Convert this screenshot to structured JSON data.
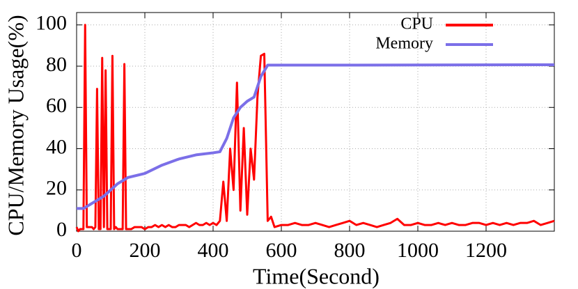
{
  "chart_data": {
    "type": "line",
    "x_label": "Time(Second)",
    "y_label": "CPU/Memory Usage(%)",
    "xlim": [
      0,
      1400
    ],
    "ylim": [
      0,
      106
    ],
    "xticks": [
      0,
      200,
      400,
      600,
      800,
      1000,
      1200
    ],
    "yticks": [
      0,
      20,
      40,
      60,
      80,
      100
    ],
    "grid": true,
    "legend_position": "top-right",
    "series": [
      {
        "name": "CPU",
        "color": "#ff0000",
        "x": [
          0,
          5,
          10,
          15,
          20,
          25,
          30,
          35,
          40,
          45,
          50,
          55,
          60,
          65,
          70,
          75,
          80,
          85,
          90,
          95,
          100,
          105,
          110,
          115,
          120,
          125,
          130,
          135,
          140,
          145,
          150,
          160,
          170,
          180,
          190,
          200,
          210,
          220,
          230,
          240,
          250,
          260,
          270,
          280,
          290,
          300,
          310,
          320,
          330,
          340,
          350,
          360,
          370,
          380,
          390,
          400,
          410,
          420,
          430,
          440,
          450,
          460,
          470,
          480,
          490,
          500,
          510,
          520,
          530,
          540,
          550,
          560,
          570,
          580,
          600,
          620,
          640,
          660,
          680,
          700,
          720,
          740,
          760,
          780,
          800,
          820,
          840,
          860,
          880,
          900,
          920,
          940,
          960,
          980,
          1000,
          1020,
          1040,
          1060,
          1080,
          1100,
          1120,
          1140,
          1160,
          1180,
          1200,
          1220,
          1240,
          1260,
          1280,
          1300,
          1320,
          1340,
          1360,
          1380,
          1400
        ],
        "values": [
          2,
          0,
          1,
          1,
          1,
          100,
          2,
          2,
          2,
          2,
          1,
          2,
          69,
          1,
          1,
          84,
          2,
          78,
          1,
          1,
          1,
          85,
          1,
          2,
          1,
          1,
          1,
          1,
          81,
          1,
          1,
          1,
          2,
          2,
          2,
          1,
          2,
          2,
          3,
          2,
          3,
          2,
          3,
          2,
          2,
          3,
          3,
          3,
          2,
          3,
          4,
          3,
          3,
          4,
          3,
          4,
          3,
          5,
          24,
          5,
          40,
          20,
          72,
          10,
          50,
          8,
          40,
          25,
          65,
          85,
          86,
          5,
          7,
          2,
          3,
          3,
          4,
          3,
          3,
          4,
          3,
          2,
          3,
          4,
          5,
          3,
          4,
          3,
          2,
          3,
          4,
          6,
          3,
          3,
          4,
          3,
          3,
          4,
          3,
          4,
          3,
          3,
          4,
          4,
          3,
          4,
          3,
          4,
          3,
          4,
          4,
          5,
          3,
          4,
          5
        ]
      },
      {
        "name": "Memory",
        "color": "#7b6fe8",
        "x": [
          0,
          20,
          40,
          60,
          80,
          100,
          120,
          150,
          200,
          250,
          300,
          350,
          400,
          420,
          440,
          460,
          480,
          500,
          520,
          540,
          560,
          800,
          1400
        ],
        "values": [
          11,
          11,
          13,
          15,
          17,
          20,
          23,
          26,
          28,
          32,
          35,
          37,
          38,
          38.5,
          45,
          55,
          60,
          63,
          65,
          75,
          80.5,
          80.5,
          80.7
        ]
      }
    ]
  }
}
